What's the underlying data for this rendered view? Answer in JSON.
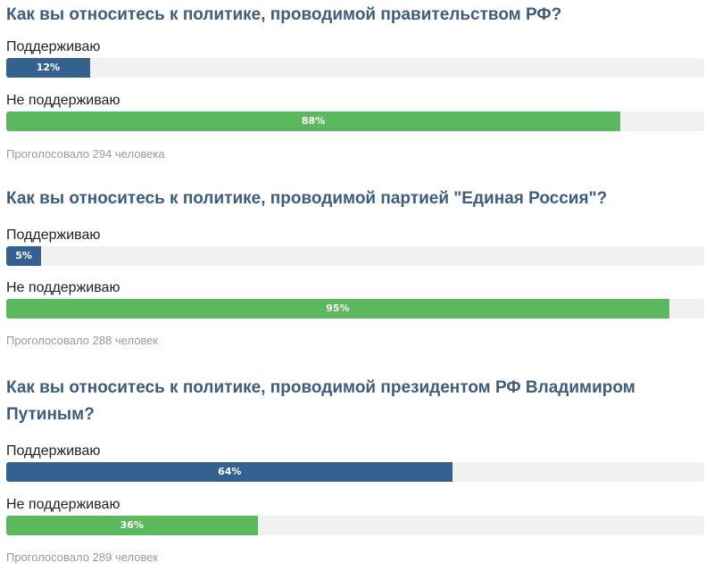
{
  "colors": {
    "support": "#33628f",
    "oppose": "#5cb85c",
    "track": "#f1f1f1",
    "question": "#3d5c80"
  },
  "polls": [
    {
      "question": "Как вы относитесь к политике, проводимой правительством РФ?",
      "options": [
        {
          "label": "Поддерживаю",
          "percent_text": "12%",
          "value": 12
        },
        {
          "label": "Не поддерживаю",
          "percent_text": "88%",
          "value": 88
        }
      ],
      "votes": "Проголосовало 294 человека"
    },
    {
      "question": "Как вы относитесь к политике, проводимой партией \"Единая Россия\"?",
      "options": [
        {
          "label": "Поддерживаю",
          "percent_text": "5%",
          "value": 5
        },
        {
          "label": "Не поддерживаю",
          "percent_text": "95%",
          "value": 95
        }
      ],
      "votes": "Проголосовало 288 человек"
    },
    {
      "question": "Как вы относитесь к политике, проводимой президентом РФ Владимиром Путиным?",
      "options": [
        {
          "label": "Поддерживаю",
          "percent_text": "64%",
          "value": 64
        },
        {
          "label": "Не поддерживаю",
          "percent_text": "36%",
          "value": 36
        }
      ],
      "votes": "Проголосовало 289 человек"
    }
  ]
}
